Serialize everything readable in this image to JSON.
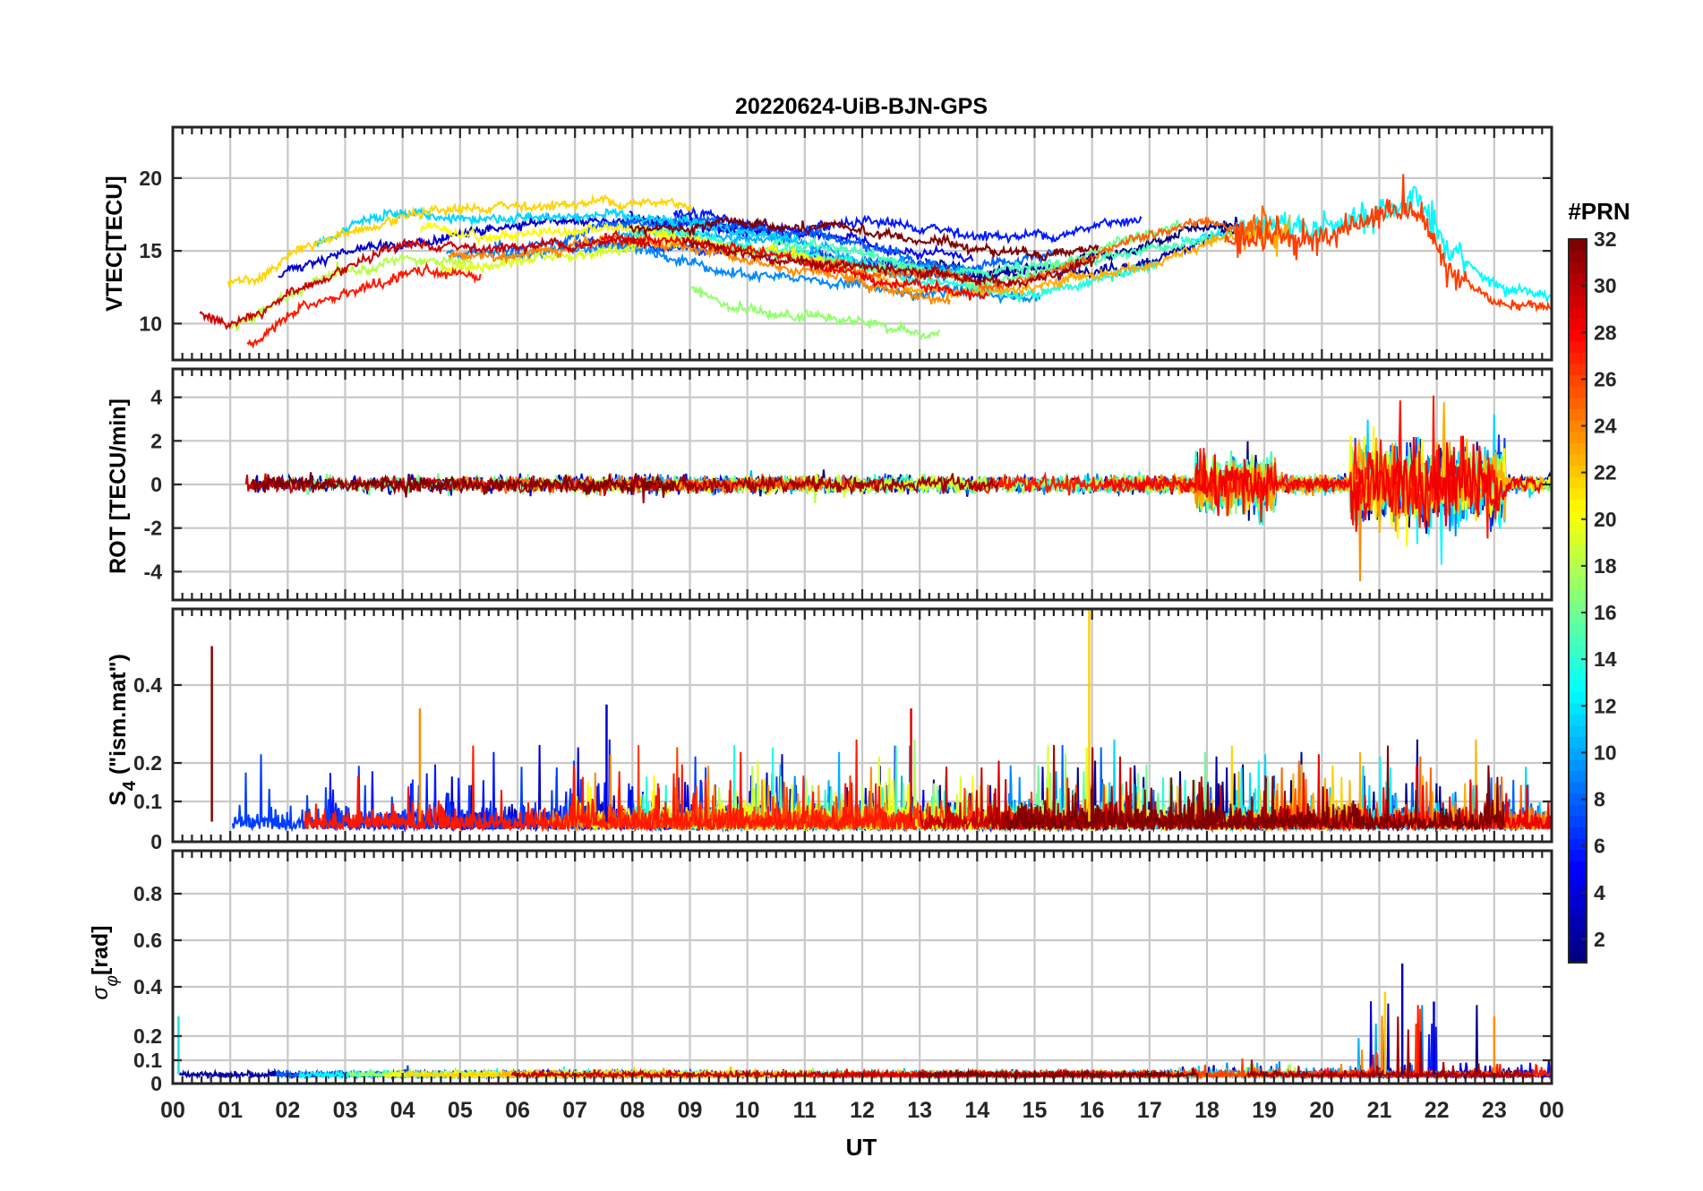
{
  "chart_data": {
    "type": "line",
    "title": "20220624-UiB-BJN-GPS",
    "xlabel": "UT",
    "x_tick_labels": [
      "00",
      "01",
      "02",
      "03",
      "04",
      "05",
      "06",
      "07",
      "08",
      "09",
      "10",
      "11",
      "12",
      "13",
      "14",
      "15",
      "16",
      "17",
      "18",
      "19",
      "20",
      "21",
      "22",
      "23",
      "00"
    ],
    "xlim": [
      0,
      24
    ],
    "grid": true,
    "colorbar": {
      "label": "#PRN",
      "range": [
        1,
        32
      ],
      "tick_labels": [
        "2",
        "4",
        "6",
        "8",
        "10",
        "12",
        "14",
        "16",
        "18",
        "20",
        "22",
        "24",
        "26",
        "28",
        "30",
        "32"
      ],
      "colormap": "jet"
    },
    "panels": [
      {
        "name": "vtec",
        "ylabel": "VTEC[TECU]",
        "ylim": [
          7.5,
          23.5
        ],
        "y_ticks": [
          10,
          15,
          20
        ],
        "y_tick_labels": [
          "10",
          "15",
          "20"
        ],
        "series_summary": "VTEC ~10-13 at 00-02 UT, rising to ~15-16 by 04 UT, ~14-17 through 06-12 UT, ~12-14 at 13-16 UT, increasing to ~15-20 at 18-22 UT, dropping to ~8-12 after 22 UT"
      },
      {
        "name": "rot",
        "ylabel": "ROT [TECU/min]",
        "ylim": [
          -5.3,
          5.3
        ],
        "y_ticks": [
          -4,
          -2,
          0,
          2,
          4
        ],
        "y_tick_labels": [
          "-4",
          "-2",
          "0",
          "2",
          "4"
        ],
        "series_summary": "ROT near 0 (+/-0.5) most of the day, enhanced fluctuations +/-2 at 18-19 UT and up to +/-4 at 20.5-23 UT"
      },
      {
        "name": "s4",
        "ylabel": "S4 (\"ism.mat\")",
        "ylim": [
          0,
          0.6
        ],
        "y_ticks": [
          0,
          0.1,
          0.2,
          0.4
        ],
        "y_tick_labels": [
          "0",
          "0.1",
          "0.2",
          "0.4"
        ],
        "series_summary": "S4 mostly 0.02-0.1 with spikes to 0.2-0.35, peak ~0.5 near 00:40 UT and ~0.6 near 16 UT"
      },
      {
        "name": "sigphi",
        "ylabel": "σφ[rad]",
        "ylim": [
          0,
          1
        ],
        "y_ticks": [
          0,
          0.1,
          0.2,
          0.4,
          0.6,
          0.8
        ],
        "y_tick_labels": [
          "0",
          "0.1",
          "0.2",
          "0.4",
          "0.6",
          "0.8"
        ],
        "series_summary": "Sigma-phi ~0.03-0.05 baseline, spikes to 0.2-0.5 between 20.5 and 22.5 UT, ~0.28 near 00 UT"
      }
    ]
  }
}
